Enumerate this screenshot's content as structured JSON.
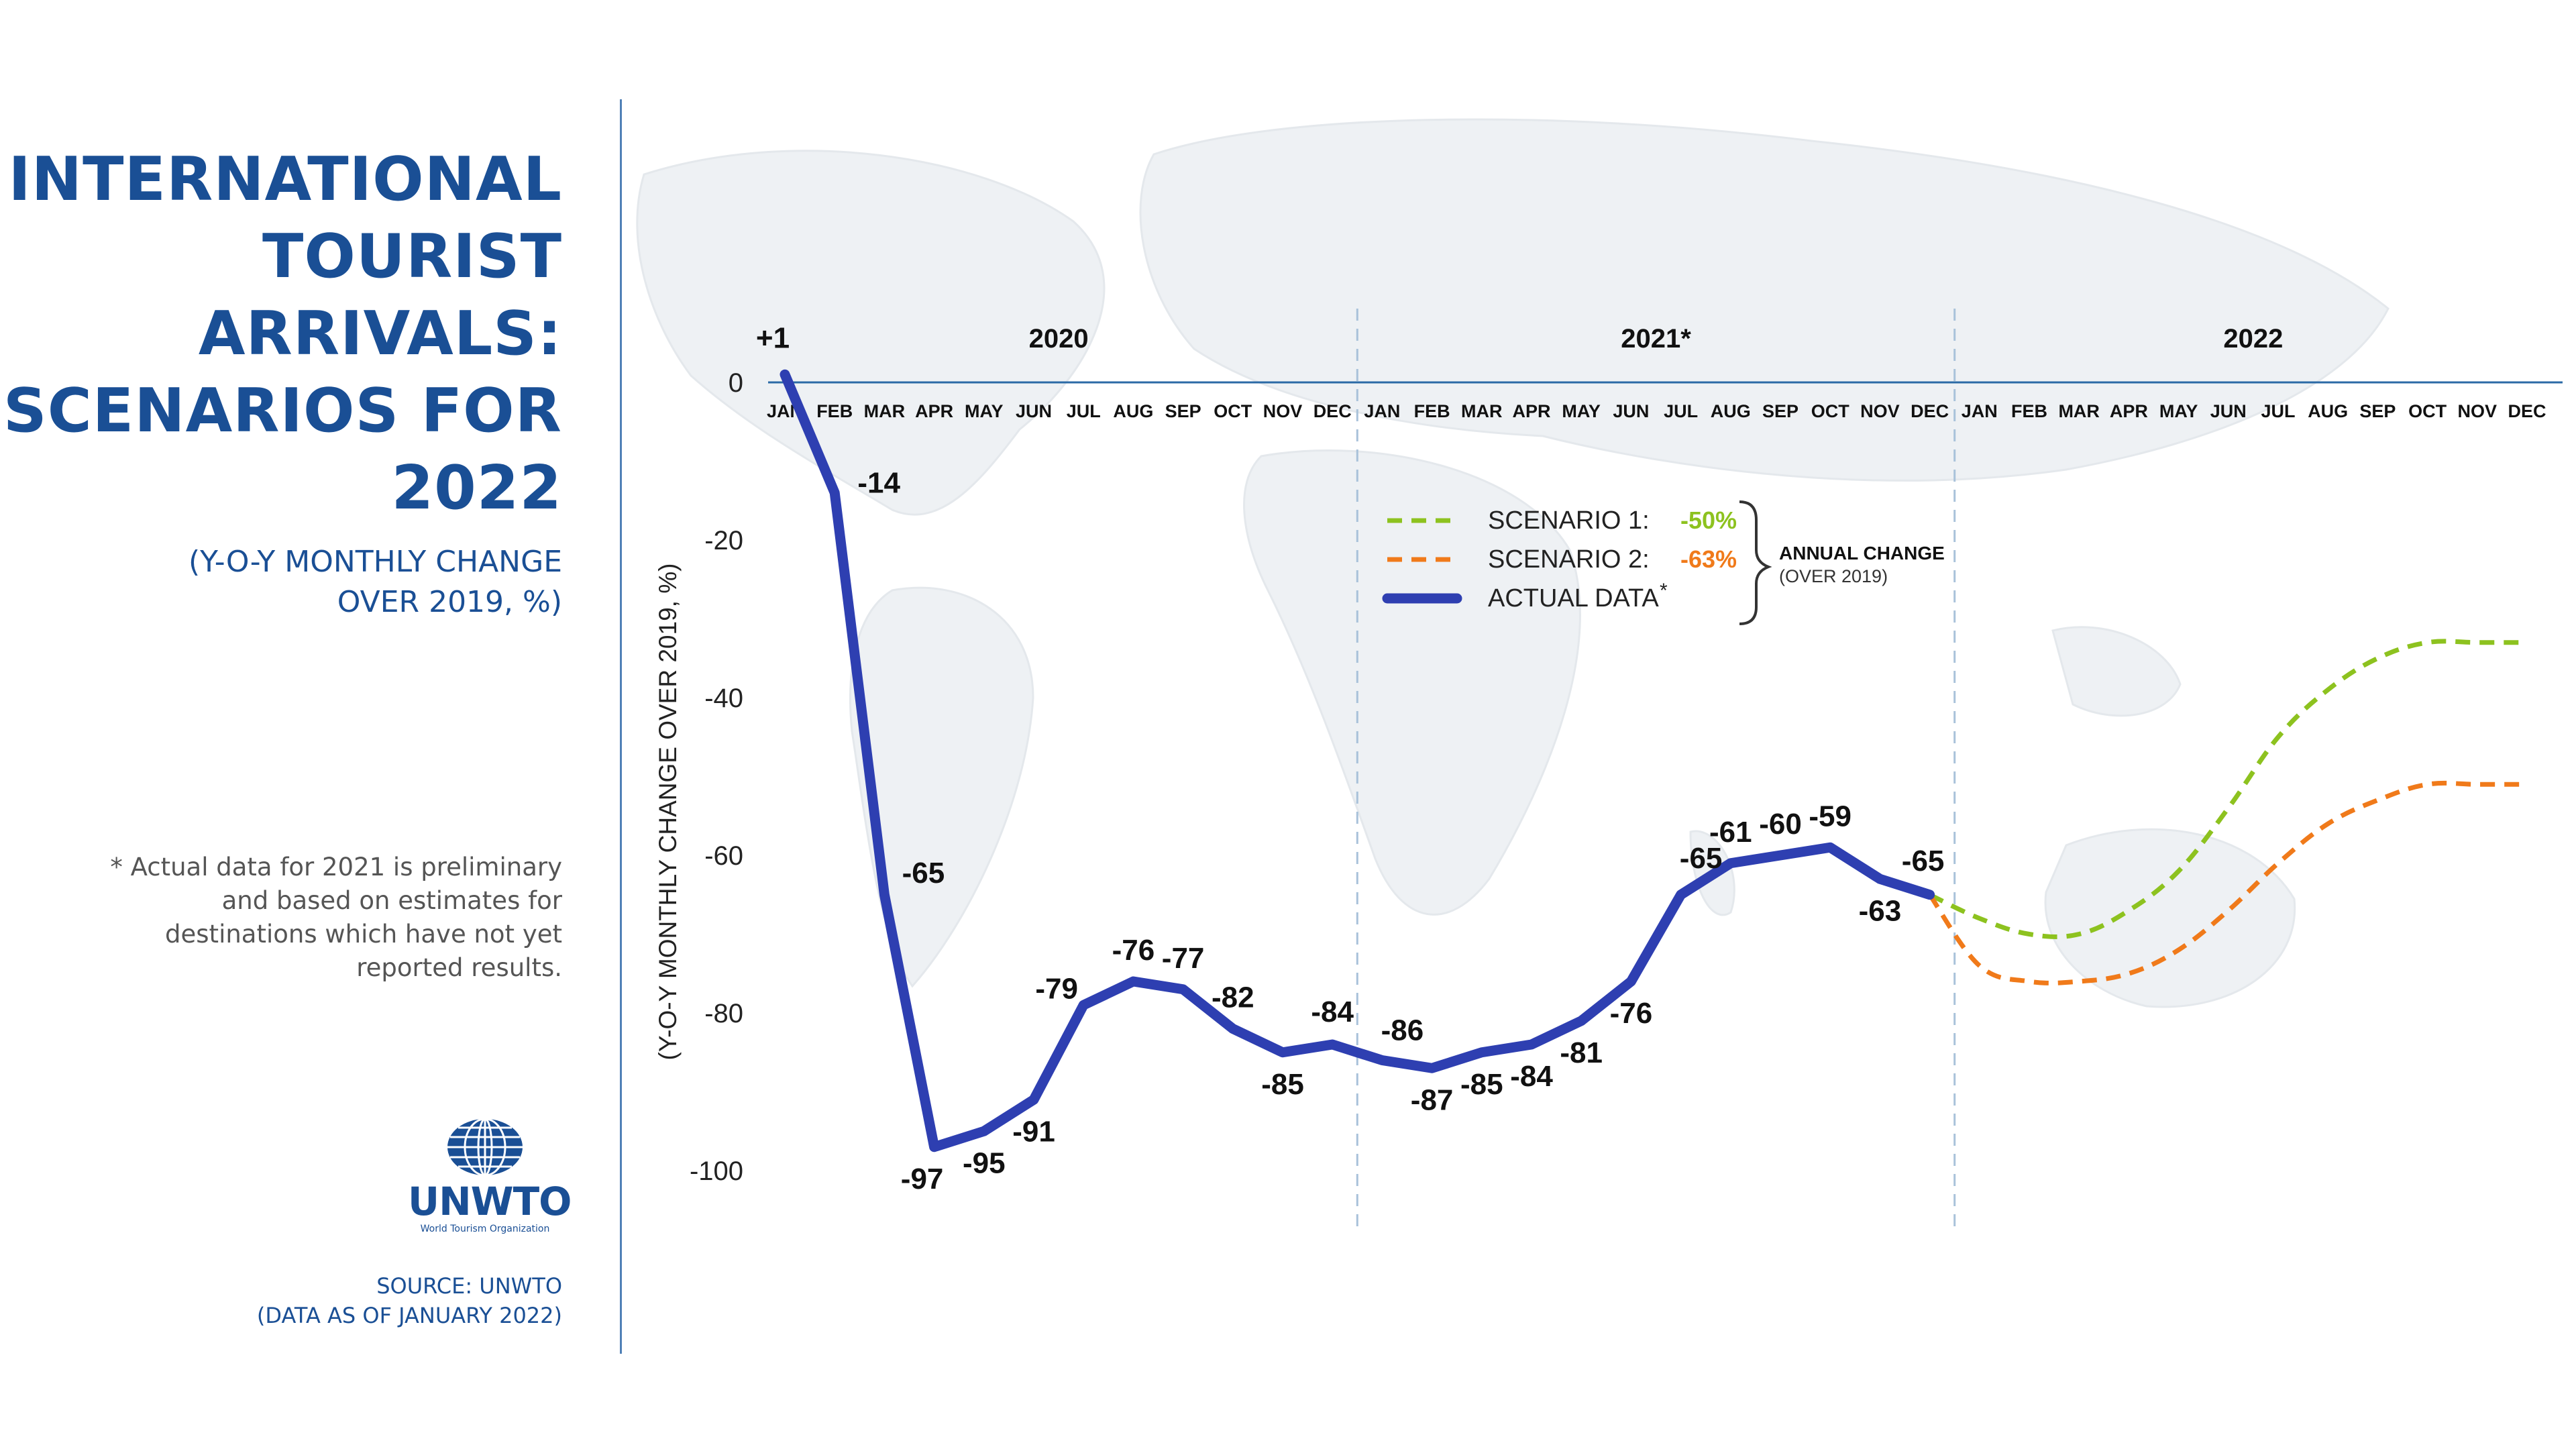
{
  "sidebar": {
    "title_lines": [
      "INTERNATIONAL",
      "TOURIST",
      "ARRIVALS:",
      "SCENARIOS FOR",
      "2022"
    ],
    "subtitle_lines": [
      "(Y-O-Y MONTHLY CHANGE",
      "OVER 2019, %)"
    ],
    "footnote_lines": [
      "* Actual data for 2021 is preliminary",
      "and based on estimates for",
      "destinations which have not yet",
      "reported results."
    ],
    "logo": {
      "name": "UNWTO",
      "subtitle": "World Tourism Organization",
      "icon": "globe-icon"
    },
    "source_lines": [
      "SOURCE: UNWTO",
      "(DATA AS OF JANUARY 2022)"
    ]
  },
  "colors": {
    "accent": "#1a4f95",
    "actual": "#2e3fb1",
    "scenario1": "#8dc21f",
    "scenario2": "#f07a1a",
    "divider": "#4f80b6",
    "year_separator": "#a9c2da",
    "map": "#eef1f4"
  },
  "chart_data": {
    "type": "line",
    "title": "INTERNATIONAL TOURIST ARRIVALS: SCENARIOS FOR 2022",
    "ylabel": "(Y-O-Y MONTHLY CHANGE OVER 2019, %)",
    "xlabel": "",
    "ylim": [
      -100,
      0
    ],
    "y_ticks": [
      0,
      -20,
      -40,
      -60,
      -80,
      -100
    ],
    "years": [
      "2020",
      "2021*",
      "2022"
    ],
    "months": [
      "JAN",
      "FEB",
      "MAR",
      "APR",
      "MAY",
      "JUN",
      "JUL",
      "AUG",
      "SEP",
      "OCT",
      "NOV",
      "DEC"
    ],
    "series": [
      {
        "name": "ACTUAL DATA*",
        "style": "solid",
        "start_index": 0,
        "values": [
          1,
          -14,
          -65,
          -97,
          -95,
          -91,
          -79,
          -76,
          -77,
          -82,
          -85,
          -84,
          -86,
          -87,
          -85,
          -84,
          -81,
          -76,
          -65,
          -61,
          -60,
          -59,
          -63,
          -65
        ],
        "labels": [
          "+1",
          "-14",
          "-65",
          "-97",
          "-95",
          "-91",
          "-79",
          "-76",
          "-77",
          "-82",
          "-85",
          "-84",
          "-86",
          "-87",
          "-85",
          "-84",
          "-81",
          "-76",
          "-65",
          "-61",
          "-60",
          "-59",
          "-63",
          "-65"
        ]
      },
      {
        "name": "SCENARIO 1:",
        "style": "dashed",
        "start_index": 23,
        "values": [
          -65,
          -68,
          -70,
          -70,
          -67,
          -62,
          -54,
          -45,
          -39,
          -35,
          -33,
          -33,
          -33
        ]
      },
      {
        "name": "SCENARIO 2:",
        "style": "dashed",
        "start_index": 23,
        "values": [
          -65,
          -74,
          -76,
          -76,
          -75,
          -72,
          -67,
          -61,
          -56,
          -53,
          -51,
          -51,
          -51
        ]
      }
    ],
    "legend": {
      "position": "top-center",
      "entries": [
        {
          "label": "SCENARIO 1:",
          "value": "-50%",
          "color_key": "scenario1",
          "style": "dashed"
        },
        {
          "label": "SCENARIO 2:",
          "value": "-63%",
          "color_key": "scenario2",
          "style": "dashed"
        },
        {
          "label": "ACTUAL DATA",
          "superscript": "*",
          "color_key": "actual",
          "style": "solid"
        }
      ],
      "brace_title": "ANNUAL CHANGE",
      "brace_subtitle": "(OVER 2019)"
    }
  }
}
